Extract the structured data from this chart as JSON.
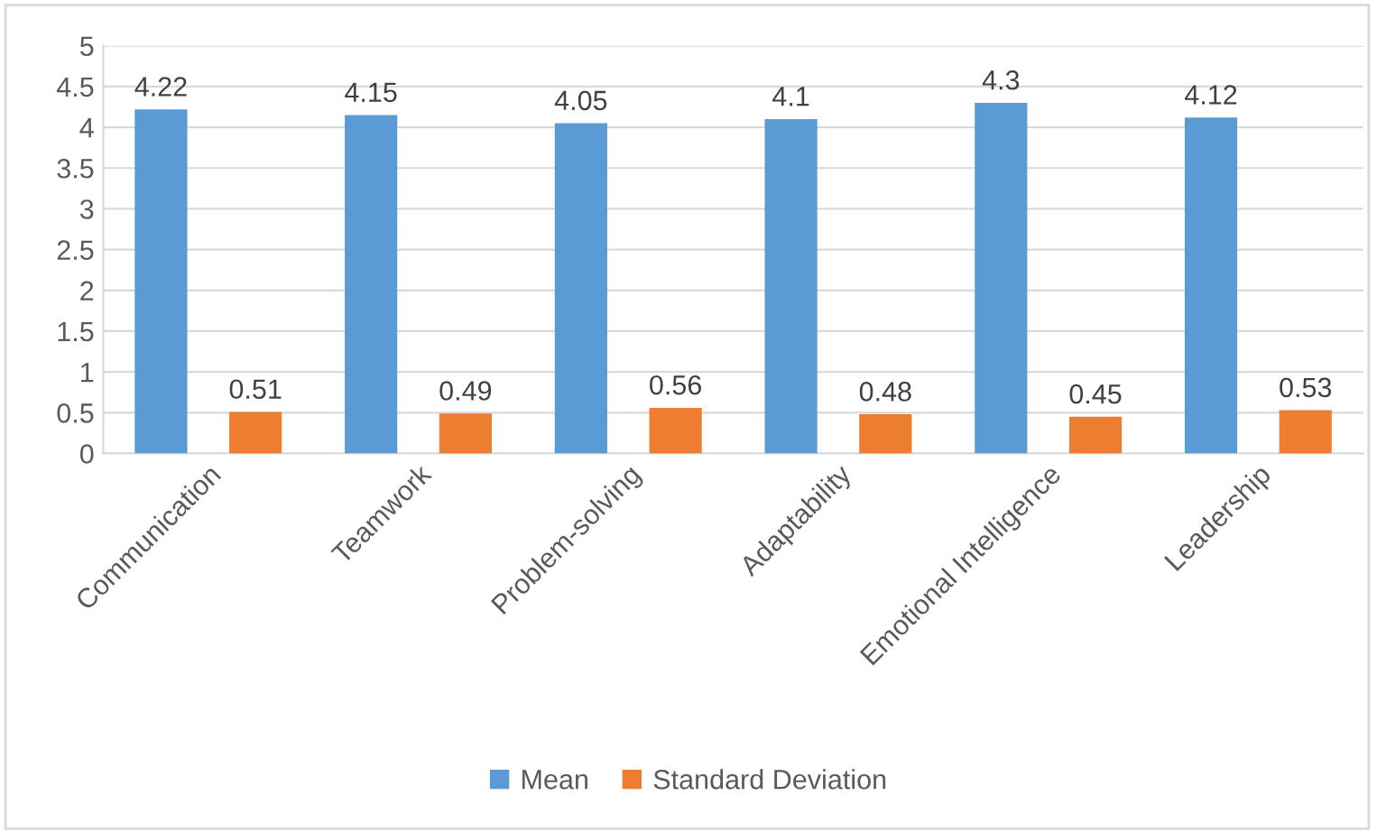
{
  "chart_data": {
    "type": "bar",
    "categories": [
      "Communication",
      "Teamwork",
      "Problem-solving",
      "Adaptability",
      "Emotional Intelligence",
      "Leadership"
    ],
    "series": [
      {
        "name": "Mean",
        "color": "#5b9bd5",
        "values": [
          4.22,
          4.15,
          4.05,
          4.1,
          4.3,
          4.12
        ]
      },
      {
        "name": "Standard Deviation",
        "color": "#ed7d31",
        "values": [
          0.51,
          0.49,
          0.56,
          0.48,
          0.45,
          0.53
        ]
      }
    ],
    "ylim": [
      0,
      5
    ],
    "yticks": [
      0,
      0.5,
      1,
      1.5,
      2,
      2.5,
      3,
      3.5,
      4,
      4.5,
      5
    ],
    "grid": "y",
    "legend": "bottom",
    "data_labels": true
  }
}
